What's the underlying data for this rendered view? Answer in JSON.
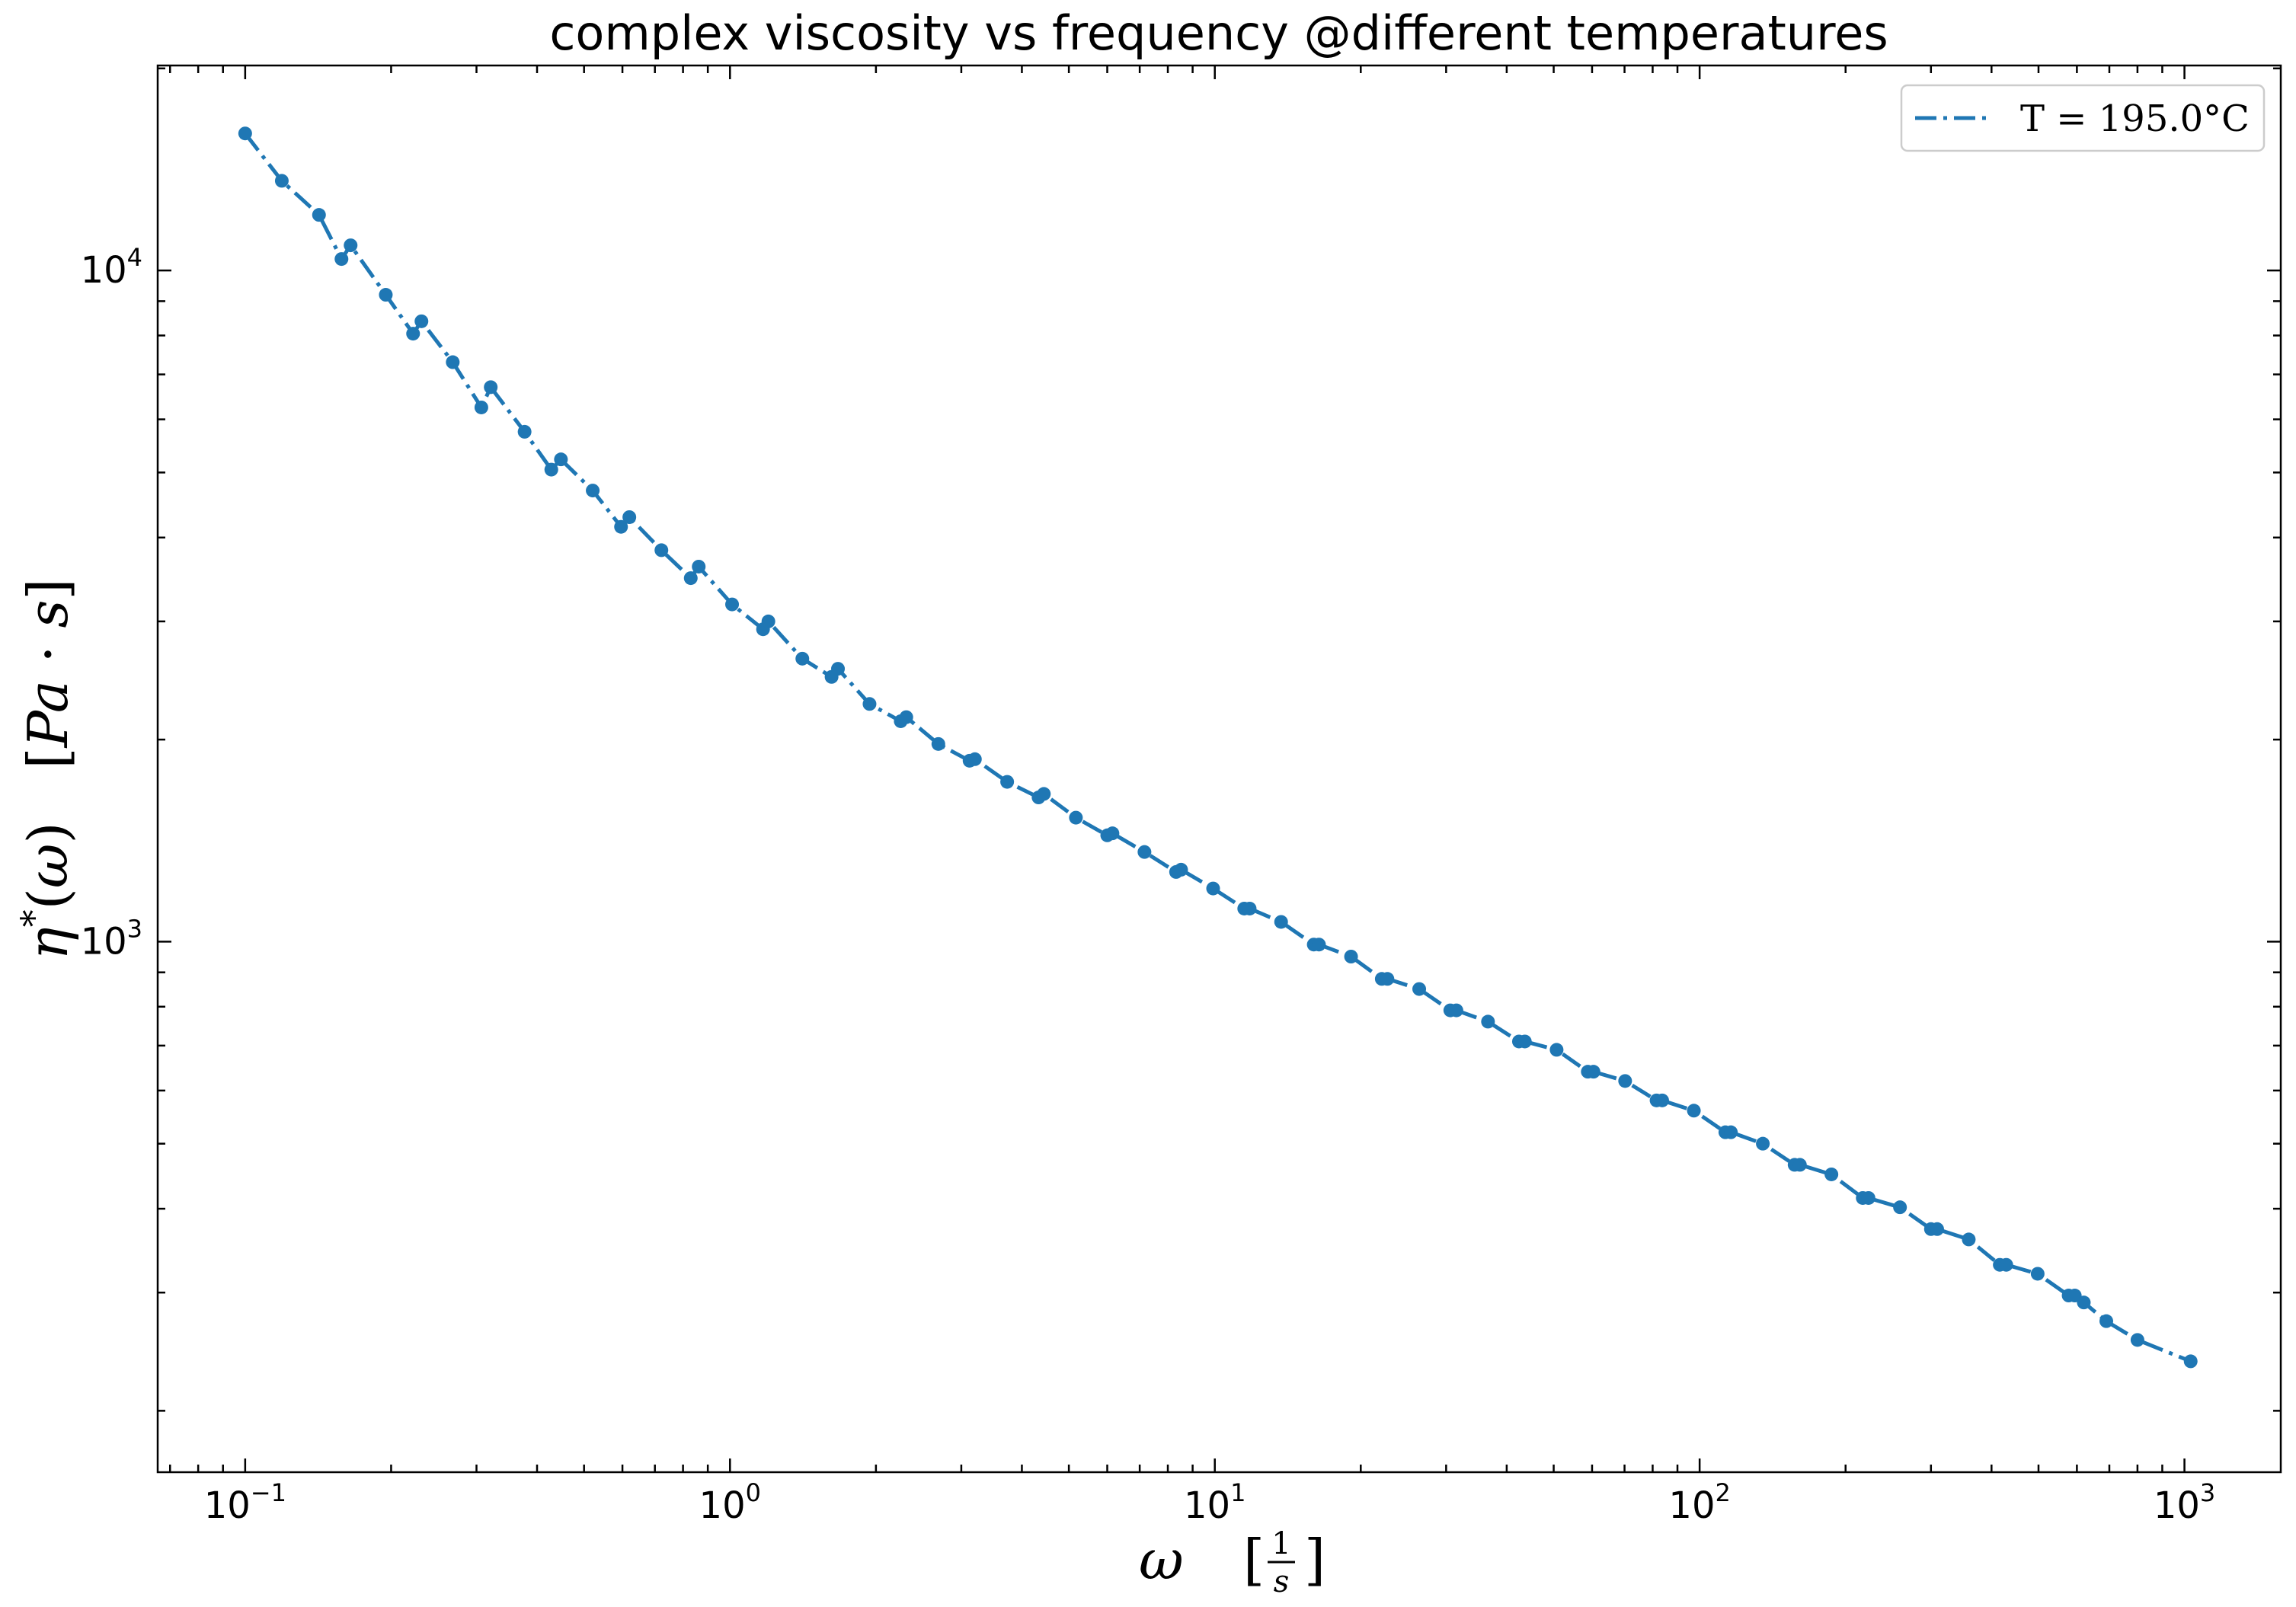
{
  "chart_data": {
    "type": "line",
    "title": "complex viscosity vs frequency @different temperatures",
    "xlabel": "ω    [1/s]",
    "ylabel": "η*(ω)    [Pa·s]",
    "xscale": "log",
    "yscale": "log",
    "xlim": [
      0.066,
      1580
    ],
    "ylim": [
      162,
      20200
    ],
    "grid": false,
    "legend_position": "top-right",
    "x_ticks": [
      {
        "base": "10",
        "exp": "−1",
        "value": 0.1
      },
      {
        "base": "10",
        "exp": "0",
        "value": 1
      },
      {
        "base": "10",
        "exp": "1",
        "value": 10
      },
      {
        "base": "10",
        "exp": "2",
        "value": 100
      },
      {
        "base": "10",
        "exp": "3",
        "value": 1000
      }
    ],
    "y_ticks": [
      {
        "base": "10",
        "exp": "3",
        "value": 1000
      },
      {
        "base": "10",
        "exp": "4",
        "value": 10000
      }
    ],
    "series": [
      {
        "name": "T = 195.0°C",
        "color": "#1f77b4",
        "line_style": "dash-dot",
        "marker": "circle",
        "x": [
          0.1,
          0.119,
          0.142,
          0.158,
          0.165,
          0.195,
          0.222,
          0.231,
          0.268,
          0.307,
          0.321,
          0.377,
          0.428,
          0.448,
          0.521,
          0.596,
          0.62,
          0.722,
          0.83,
          0.862,
          1.01,
          1.17,
          1.2,
          1.41,
          1.62,
          1.67,
          1.94,
          2.25,
          2.31,
          2.69,
          3.12,
          3.2,
          3.73,
          4.33,
          4.44,
          5.17,
          6.0,
          6.15,
          7.16,
          8.32,
          8.52,
          9.92,
          11.5,
          11.8,
          13.7,
          16.0,
          16.4,
          19.1,
          22.1,
          22.7,
          26.4,
          30.6,
          31.5,
          36.6,
          42.4,
          43.6,
          50.7,
          58.8,
          60.4,
          70.2,
          81.5,
          83.7,
          97.3,
          113,
          116,
          135,
          157,
          161,
          187,
          217,
          223,
          259,
          300,
          309,
          359,
          416,
          429,
          498,
          577,
          594,
          620,
          690,
          800,
          1030
        ],
        "y": [
          16000,
          13600,
          12100,
          10400,
          10900,
          9200,
          8050,
          8400,
          7300,
          6250,
          6700,
          5750,
          5050,
          5230,
          4700,
          4150,
          4290,
          3830,
          3480,
          3620,
          3180,
          2920,
          3000,
          2640,
          2480,
          2550,
          2260,
          2130,
          2160,
          1970,
          1860,
          1870,
          1730,
          1640,
          1660,
          1530,
          1440,
          1450,
          1360,
          1270,
          1280,
          1200,
          1120,
          1120,
          1070,
          990,
          990,
          950,
          880,
          880,
          850,
          790,
          790,
          760,
          710,
          710,
          690,
          640,
          640,
          620,
          580,
          580,
          560,
          520,
          520,
          500,
          465,
          465,
          450,
          415,
          415,
          402,
          373,
          373,
          360,
          330,
          330,
          320,
          297,
          297,
          290,
          272,
          255,
          237
        ]
      }
    ]
  }
}
